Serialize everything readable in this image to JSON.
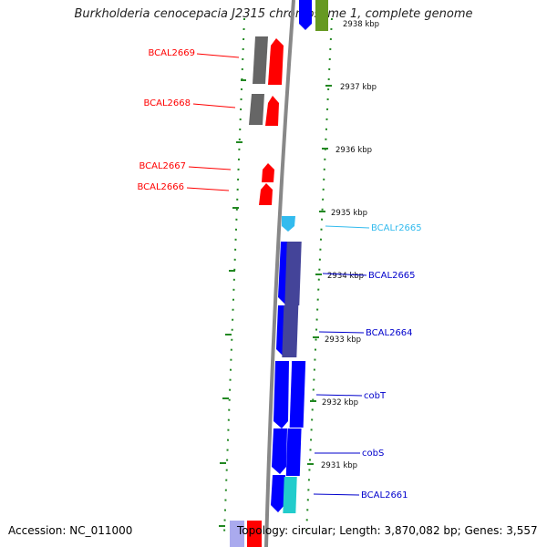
{
  "title": "Burkholderia cenocepacia J2315 chromosome 1, complete genome",
  "footer": {
    "accession": "Accession: NC_011000",
    "summary": "Topology: circular; Length: 3,870,082 bp; Genes: 3,557"
  },
  "colors": {
    "reverse_gene": "#ff0000",
    "reverse_cds_track": "#666666",
    "forward_gene": "#0000ff",
    "forward_cds_track": "#444499",
    "rna": "#33bbee",
    "highlight_cds": "#22cccc",
    "tick": "#228822",
    "backbone": "#888888"
  },
  "ticks": [
    "2937 kbp",
    "2936 kbp",
    "2935 kbp",
    "2934 kbp",
    "2933 kbp",
    "2932 kbp",
    "2931 kbp"
  ],
  "gene_labels": [
    {
      "name": "BCAL2669",
      "strand": "reverse"
    },
    {
      "name": "BCAL2668",
      "strand": "reverse"
    },
    {
      "name": "BCAL2667",
      "strand": "reverse"
    },
    {
      "name": "BCAL2666",
      "strand": "reverse"
    },
    {
      "name": "BCALr2665",
      "strand": "rna"
    },
    {
      "name": "BCAL2665",
      "strand": "forward"
    },
    {
      "name": "BCAL2664",
      "strand": "forward"
    },
    {
      "name": "cobT",
      "strand": "forward"
    },
    {
      "name": "cobS",
      "strand": "forward"
    },
    {
      "name": "BCAL2661",
      "strand": "forward"
    }
  ]
}
